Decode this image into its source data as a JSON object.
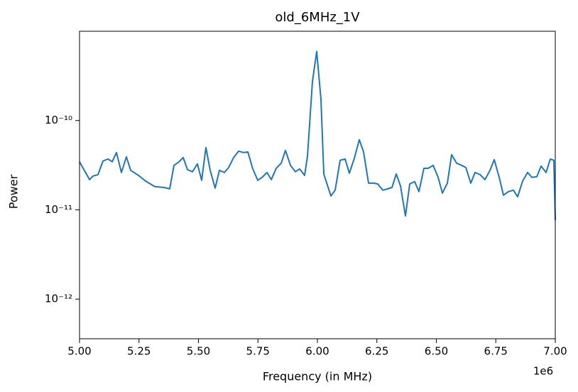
{
  "chart_data": {
    "type": "line",
    "title": "old_6MHz_1V",
    "x_label": "Frequency (in MHz)",
    "y_label": "Power",
    "x_offset_label": "1e6",
    "log_y": true,
    "grid": false,
    "xlim": [
      5000000,
      7000000
    ],
    "xticks": [
      {
        "value": 5000000,
        "label": "5.00"
      },
      {
        "value": 5250000,
        "label": "5.25"
      },
      {
        "value": 5500000,
        "label": "5.50"
      },
      {
        "value": 5750000,
        "label": "5.75"
      },
      {
        "value": 6000000,
        "label": "6.00"
      },
      {
        "value": 6250000,
        "label": "6.25"
      },
      {
        "value": 6500000,
        "label": "6.50"
      },
      {
        "value": 6750000,
        "label": "6.75"
      },
      {
        "value": 7000000,
        "label": "7.00"
      }
    ],
    "ylim": [
      3.6e-13,
      1e-09
    ],
    "yticks": [
      {
        "value": 1e-12,
        "label": "10⁻¹²"
      },
      {
        "value": 1e-11,
        "label": "10⁻¹¹"
      },
      {
        "value": 1e-10,
        "label": "10⁻¹⁰"
      }
    ],
    "x": [
      5000000,
      5042000,
      5056700,
      5077600,
      5098500,
      5119400,
      5137300,
      5155200,
      5176100,
      5197000,
      5214900,
      5247800,
      5277600,
      5316400,
      5355200,
      5379100,
      5397000,
      5414900,
      5435800,
      5453700,
      5474600,
      5495500,
      5513400,
      5531300,
      5549300,
      5570100,
      5588100,
      5609000,
      5626900,
      5647800,
      5668700,
      5689600,
      5707500,
      5728400,
      5749300,
      5767200,
      5788100,
      5806000,
      5826900,
      5847800,
      5865700,
      5886600,
      5907500,
      5925400,
      5946300,
      5958200,
      5979100,
      5997000,
      6014900,
      6026900,
      6056700,
      6074600,
      6095500,
      6116400,
      6134300,
      6155200,
      6176100,
      6194000,
      6214900,
      6235800,
      6253700,
      6274600,
      6295500,
      6313400,
      6331300,
      6349300,
      6370100,
      6388100,
      6409000,
      6426900,
      6447800,
      6465700,
      6486600,
      6507500,
      6525400,
      6546300,
      6564200,
      6585100,
      6606000,
      6623900,
      6644800,
      6662700,
      6683600,
      6704500,
      6725400,
      6743300,
      6764200,
      6782100,
      6803000,
      6823900,
      6841800,
      6862700,
      6883600,
      6901500,
      6922400,
      6940300,
      6961200,
      6979100,
      6994000,
      7000000
    ],
    "series": [
      {
        "name": "power",
        "color": "#1f77b4",
        "values": [
          3.45e-11,
          2.18e-11,
          2.39e-11,
          2.48e-11,
          3.52e-11,
          3.71e-11,
          3.45e-11,
          4.38e-11,
          2.62e-11,
          3.92e-11,
          2.77e-11,
          2.43e-11,
          2.1e-11,
          1.82e-11,
          1.78e-11,
          1.72e-11,
          3.15e-11,
          3.39e-11,
          3.85e-11,
          2.82e-11,
          2.67e-11,
          3.27e-11,
          2.14e-11,
          4.98e-11,
          2.77e-11,
          1.75e-11,
          2.77e-11,
          2.62e-11,
          2.98e-11,
          3.85e-11,
          4.54e-11,
          4.38e-11,
          4.46e-11,
          2.87e-11,
          2.14e-11,
          2.31e-11,
          2.62e-11,
          2.18e-11,
          2.92e-11,
          3.33e-11,
          4.63e-11,
          3.15e-11,
          2.67e-11,
          2.87e-11,
          2.43e-11,
          4e-11,
          2.74e-10,
          5.93e-10,
          1.73e-10,
          2.52e-11,
          1.43e-11,
          1.66e-11,
          3.59e-11,
          3.71e-11,
          2.57e-11,
          3.78e-11,
          6.1e-11,
          4.46e-11,
          1.99e-11,
          1.99e-11,
          1.95e-11,
          1.66e-11,
          1.72e-11,
          1.78e-11,
          2.52e-11,
          1.85e-11,
          8.55e-12,
          1.95e-11,
          2.07e-11,
          1.6e-11,
          2.92e-11,
          2.92e-11,
          3.15e-11,
          2.31e-11,
          1.54e-11,
          1.99e-11,
          4.15e-11,
          3.33e-11,
          3.15e-11,
          2.98e-11,
          1.99e-11,
          2.62e-11,
          2.48e-11,
          2.18e-11,
          2.77e-11,
          3.65e-11,
          2.31e-11,
          1.46e-11,
          1.6e-11,
          1.66e-11,
          1.4e-11,
          2.1e-11,
          2.62e-11,
          2.31e-11,
          2.35e-11,
          3.09e-11,
          2.62e-11,
          3.71e-11,
          3.59e-11,
          7.66e-12
        ]
      }
    ]
  }
}
